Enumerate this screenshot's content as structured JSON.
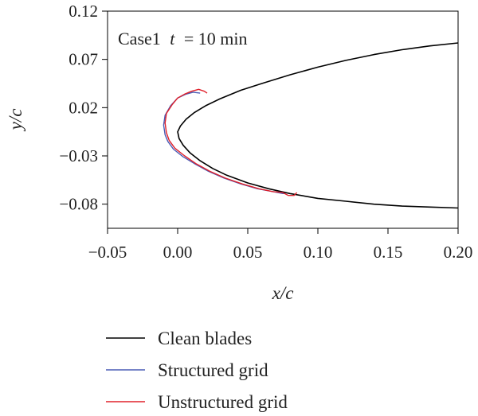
{
  "chart_data": {
    "type": "line",
    "title": "",
    "annotation": {
      "case": "Case1",
      "t_symbol": "t",
      "rest": "= 10 min"
    },
    "xlabel": "x/c",
    "ylabel": "y/c",
    "xlim": [
      -0.05,
      0.2
    ],
    "ylim": [
      -0.105,
      0.12
    ],
    "xticks": [
      -0.05,
      0.0,
      0.05,
      0.1,
      0.15,
      0.2
    ],
    "xtick_labels": [
      "−0.05",
      "0.00",
      "0.05",
      "0.10",
      "0.15",
      "0.20"
    ],
    "yticks": [
      0.12,
      0.07,
      0.02,
      -0.03,
      -0.08
    ],
    "ytick_labels": [
      "0.12",
      "0.07",
      "0.02",
      "−0.03",
      "−0.08"
    ],
    "grid": false,
    "legend_position": "below-plot",
    "series": [
      {
        "name": "Clean blades",
        "color": "#000000",
        "x": [
          0.2,
          0.18,
          0.16,
          0.14,
          0.12,
          0.1,
          0.08,
          0.06,
          0.045,
          0.03,
          0.02,
          0.012,
          0.006,
          0.002,
          0.0,
          0.001,
          0.004,
          0.009,
          0.016,
          0.025,
          0.035,
          0.05,
          0.065,
          0.08,
          0.1,
          0.12,
          0.14,
          0.16,
          0.18,
          0.2
        ],
        "y": [
          0.087,
          0.084,
          0.08,
          0.075,
          0.069,
          0.062,
          0.054,
          0.045,
          0.038,
          0.029,
          0.022,
          0.015,
          0.008,
          0.001,
          -0.005,
          -0.012,
          -0.019,
          -0.027,
          -0.035,
          -0.043,
          -0.05,
          -0.058,
          -0.064,
          -0.069,
          -0.074,
          -0.077,
          -0.08,
          -0.082,
          -0.083,
          -0.084
        ]
      },
      {
        "name": "Structured grid",
        "color": "#4a5bb5",
        "x": [
          0.016,
          0.011,
          0.006,
          0.0,
          -0.005,
          -0.009,
          -0.01,
          -0.009,
          -0.007,
          -0.003,
          0.004,
          0.012,
          0.022,
          0.033,
          0.045,
          0.057,
          0.068,
          0.075,
          0.077
        ],
        "y": [
          0.035,
          0.036,
          0.034,
          0.03,
          0.022,
          0.012,
          0.002,
          -0.008,
          -0.015,
          -0.023,
          -0.031,
          -0.038,
          -0.046,
          -0.053,
          -0.059,
          -0.064,
          -0.067,
          -0.069,
          -0.069
        ]
      },
      {
        "name": "Unstructured grid",
        "color": "#e0202a",
        "x": [
          0.021,
          0.019,
          0.015,
          0.01,
          0.005,
          0.0,
          -0.004,
          -0.008,
          -0.009,
          -0.008,
          -0.006,
          -0.002,
          0.005,
          0.013,
          0.023,
          0.034,
          0.046,
          0.058,
          0.068,
          0.075,
          0.079,
          0.083,
          0.085
        ],
        "y": [
          0.035,
          0.037,
          0.039,
          0.037,
          0.034,
          0.03,
          0.023,
          0.014,
          0.004,
          -0.006,
          -0.014,
          -0.022,
          -0.03,
          -0.038,
          -0.046,
          -0.053,
          -0.059,
          -0.064,
          -0.067,
          -0.068,
          -0.071,
          -0.071,
          -0.068
        ]
      }
    ]
  }
}
